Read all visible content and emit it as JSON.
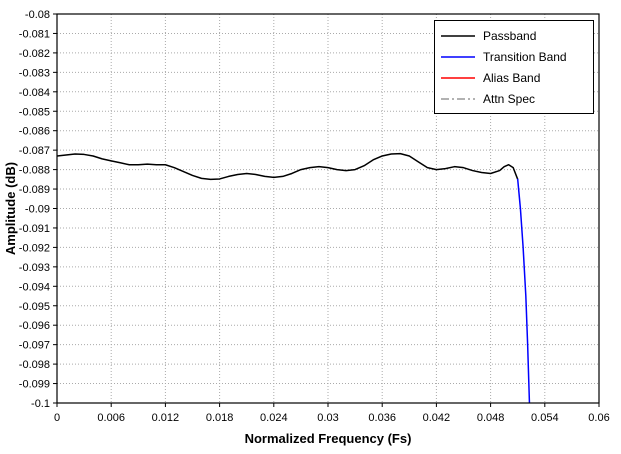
{
  "chart_data": {
    "type": "line",
    "title": "",
    "xlabel": "Normalized Frequency (Fs)",
    "ylabel": "Amplitude (dB)",
    "xlim": [
      0,
      0.06
    ],
    "ylim": [
      -0.1,
      -0.08
    ],
    "xticks": [
      0,
      0.006,
      0.012,
      0.018,
      0.024,
      0.03,
      0.036,
      0.042,
      0.048,
      0.054,
      0.06
    ],
    "xtick_labels": [
      "0",
      "0.006",
      "0.012",
      "0.018",
      "0.024",
      "0.03",
      "0.036",
      "0.042",
      "0.048",
      "0.054",
      "0.06"
    ],
    "yticks": [
      -0.08,
      -0.081,
      -0.082,
      -0.083,
      -0.084,
      -0.085,
      -0.086,
      -0.087,
      -0.088,
      -0.089,
      -0.09,
      -0.091,
      -0.092,
      -0.093,
      -0.094,
      -0.095,
      -0.096,
      -0.097,
      -0.098,
      -0.099,
      -0.1
    ],
    "ytick_labels": [
      "-0.08",
      "-0.081",
      "-0.082",
      "-0.083",
      "-0.084",
      "-0.085",
      "-0.086",
      "-0.087",
      "-0.088",
      "-0.089",
      "-0.09",
      "-0.091",
      "-0.092",
      "-0.093",
      "-0.094",
      "-0.095",
      "-0.096",
      "-0.097",
      "-0.098",
      "-0.099",
      "-0.1"
    ],
    "grid": true,
    "grid_style": "dotted",
    "grid_color": "#aaaaaa",
    "legend_position": "top-right",
    "series": [
      {
        "name": "Passband",
        "color": "#000000",
        "dash": "solid",
        "points": [
          [
            0.0,
            -0.0873
          ],
          [
            0.001,
            -0.08725
          ],
          [
            0.002,
            -0.0872
          ],
          [
            0.003,
            -0.08722
          ],
          [
            0.004,
            -0.0873
          ],
          [
            0.005,
            -0.08745
          ],
          [
            0.006,
            -0.08755
          ],
          [
            0.007,
            -0.08765
          ],
          [
            0.008,
            -0.08775
          ],
          [
            0.009,
            -0.08775
          ],
          [
            0.01,
            -0.08772
          ],
          [
            0.011,
            -0.08775
          ],
          [
            0.012,
            -0.08775
          ],
          [
            0.013,
            -0.0879
          ],
          [
            0.014,
            -0.0881
          ],
          [
            0.015,
            -0.0883
          ],
          [
            0.016,
            -0.08845
          ],
          [
            0.017,
            -0.0885
          ],
          [
            0.018,
            -0.08848
          ],
          [
            0.019,
            -0.08835
          ],
          [
            0.02,
            -0.08825
          ],
          [
            0.021,
            -0.0882
          ],
          [
            0.022,
            -0.08825
          ],
          [
            0.023,
            -0.08835
          ],
          [
            0.024,
            -0.0884
          ],
          [
            0.025,
            -0.08835
          ],
          [
            0.026,
            -0.0882
          ],
          [
            0.027,
            -0.088
          ],
          [
            0.028,
            -0.0879
          ],
          [
            0.029,
            -0.08785
          ],
          [
            0.03,
            -0.0879
          ],
          [
            0.031,
            -0.088
          ],
          [
            0.032,
            -0.08805
          ],
          [
            0.033,
            -0.088
          ],
          [
            0.034,
            -0.0878
          ],
          [
            0.035,
            -0.0875
          ],
          [
            0.036,
            -0.0873
          ],
          [
            0.037,
            -0.0872
          ],
          [
            0.038,
            -0.08718
          ],
          [
            0.039,
            -0.0873
          ],
          [
            0.04,
            -0.0876
          ],
          [
            0.041,
            -0.0879
          ],
          [
            0.042,
            -0.088
          ],
          [
            0.043,
            -0.08795
          ],
          [
            0.044,
            -0.08785
          ],
          [
            0.045,
            -0.0879
          ],
          [
            0.046,
            -0.08805
          ],
          [
            0.047,
            -0.08815
          ],
          [
            0.048,
            -0.0882
          ],
          [
            0.049,
            -0.08805
          ],
          [
            0.0495,
            -0.08785
          ],
          [
            0.05,
            -0.08775
          ],
          [
            0.0505,
            -0.0879
          ],
          [
            0.051,
            -0.0885
          ]
        ]
      },
      {
        "name": "Transition Band",
        "color": "#0000ff",
        "dash": "solid",
        "points": [
          [
            0.051,
            -0.0885
          ],
          [
            0.0513,
            -0.09
          ],
          [
            0.0516,
            -0.092
          ],
          [
            0.0519,
            -0.0945
          ],
          [
            0.0521,
            -0.097
          ],
          [
            0.0523,
            -0.1
          ]
        ]
      },
      {
        "name": "Alias Band",
        "color": "#ff0000",
        "dash": "solid",
        "points": []
      },
      {
        "name": "Attn Spec",
        "color": "#999999",
        "dash": "dashdot",
        "points": []
      }
    ]
  }
}
